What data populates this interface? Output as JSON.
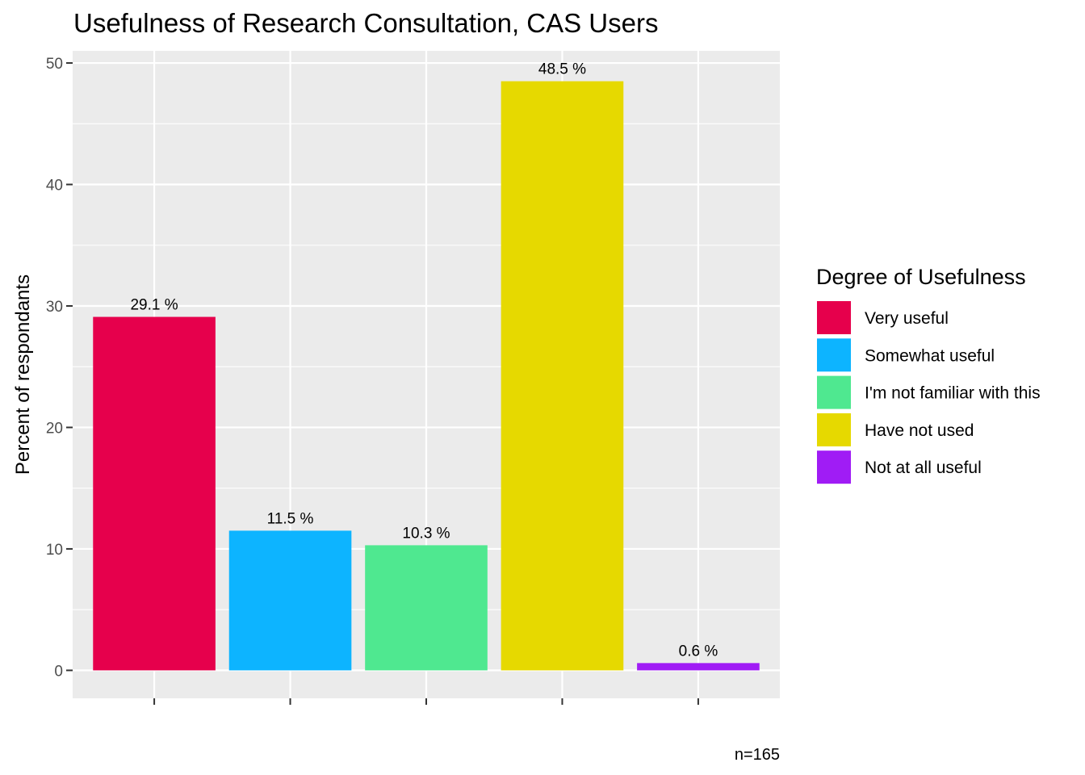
{
  "chart_data": {
    "type": "bar",
    "title": "Usefulness of Research Consultation,  CAS Users",
    "xlabel": "",
    "ylabel": "Percent of respondants",
    "ylim": [
      -2.3,
      51
    ],
    "yticks": [
      0,
      10,
      20,
      30,
      40,
      50
    ],
    "grid": true,
    "legend_position": "right",
    "legend_title": "Degree of Usefulness",
    "caption": "n=165",
    "categories": [
      "Very useful",
      "Somewhat useful",
      "I'm not familiar with this",
      "Have not used",
      "Not at all useful"
    ],
    "values": [
      29.1,
      11.5,
      10.3,
      48.5,
      0.6
    ],
    "data_labels": [
      "29.1 %",
      "11.5 %",
      "10.3 %",
      "48.5 %",
      "0.6 %"
    ],
    "colors": [
      "#E6004C",
      "#0DB4FF",
      "#4FE890",
      "#E6D900",
      "#A01CF5"
    ],
    "panel_background": "#EBEBEB",
    "grid_color": "#FFFFFF"
  }
}
